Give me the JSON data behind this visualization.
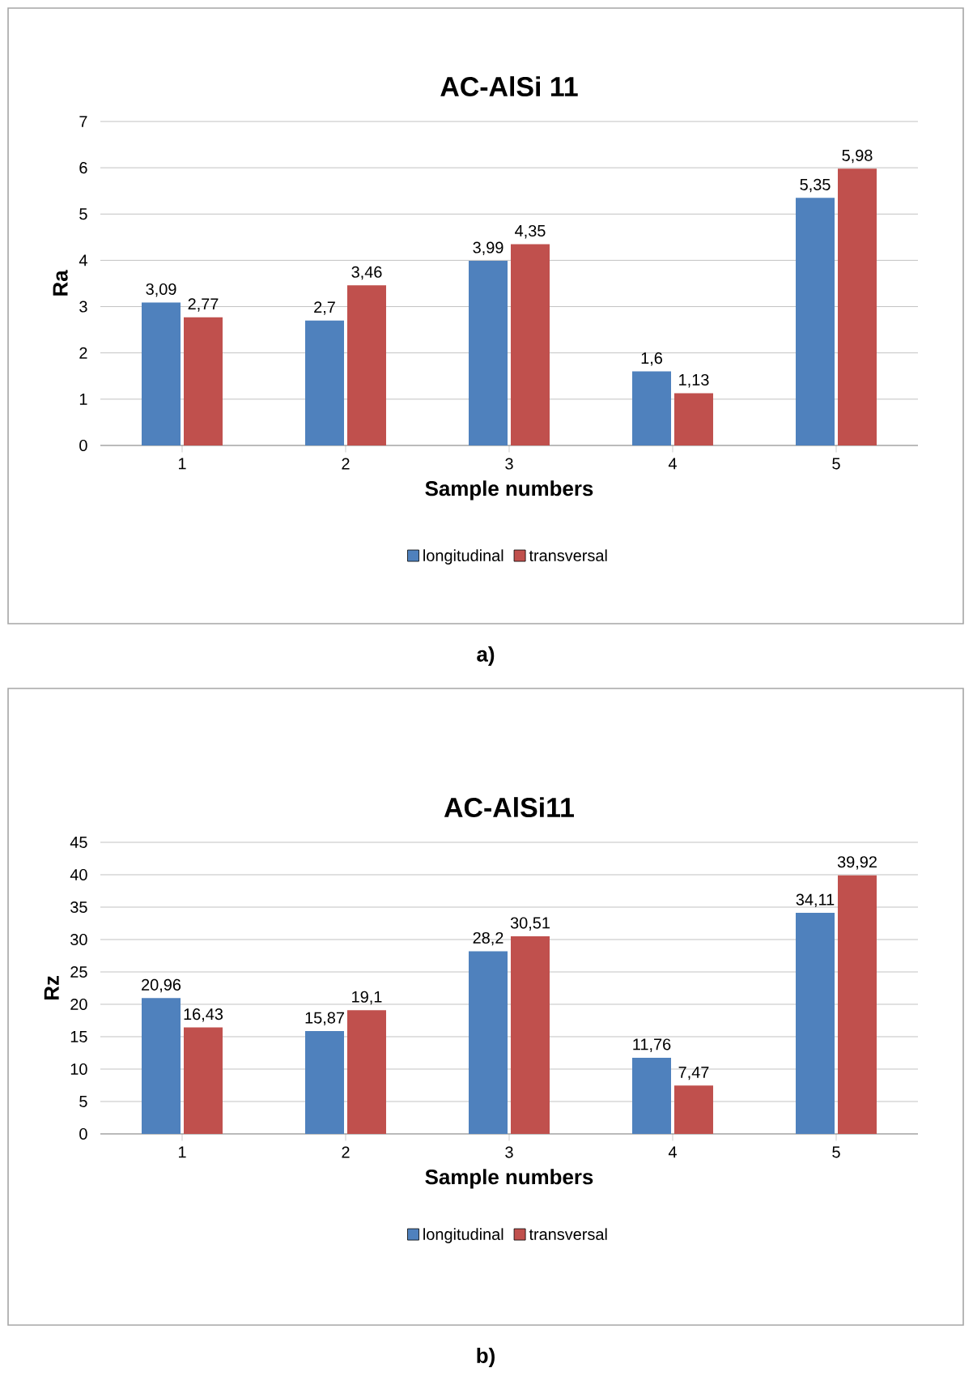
{
  "chart_data": [
    {
      "type": "bar",
      "title": "AC-AlSi 11",
      "xlabel": "Sample numbers",
      "ylabel": "Ra",
      "categories": [
        "1",
        "2",
        "3",
        "4",
        "5"
      ],
      "series": [
        {
          "name": "longitudinal",
          "color": "#4f81bd",
          "values": [
            3.09,
            2.7,
            3.99,
            1.6,
            5.35
          ],
          "value_labels": [
            "3,09",
            "2,7",
            "3,99",
            "1,6",
            "5,35"
          ]
        },
        {
          "name": "transversal",
          "color": "#c0504d",
          "values": [
            2.77,
            3.46,
            4.35,
            1.13,
            5.98
          ],
          "value_labels": [
            "2,77",
            "3,46",
            "4,35",
            "1,13",
            "5,98"
          ]
        }
      ],
      "ylim": [
        0,
        7
      ],
      "yticks": [
        0,
        1,
        2,
        3,
        4,
        5,
        6,
        7
      ],
      "grid": "y",
      "legend": "bottom",
      "annotations": [
        "a)"
      ]
    },
    {
      "type": "bar",
      "title": "AC-AlSi11",
      "xlabel": "Sample numbers",
      "ylabel": "Rz",
      "categories": [
        "1",
        "2",
        "3",
        "4",
        "5"
      ],
      "series": [
        {
          "name": "longitudinal",
          "color": "#4f81bd",
          "values": [
            20.96,
            15.87,
            28.2,
            11.76,
            34.11
          ],
          "value_labels": [
            "20,96",
            "15,87",
            "28,2",
            "11,76",
            "34,11"
          ]
        },
        {
          "name": "transversal",
          "color": "#c0504d",
          "values": [
            16.43,
            19.1,
            30.51,
            7.47,
            39.92
          ],
          "value_labels": [
            "16,43",
            "19,1",
            "30,51",
            "7,47",
            "39,92"
          ]
        }
      ],
      "ylim": [
        0,
        45
      ],
      "yticks": [
        0,
        5,
        10,
        15,
        20,
        25,
        30,
        35,
        40,
        45
      ],
      "grid": "y",
      "legend": "bottom",
      "annotations": [
        "b)"
      ]
    }
  ]
}
